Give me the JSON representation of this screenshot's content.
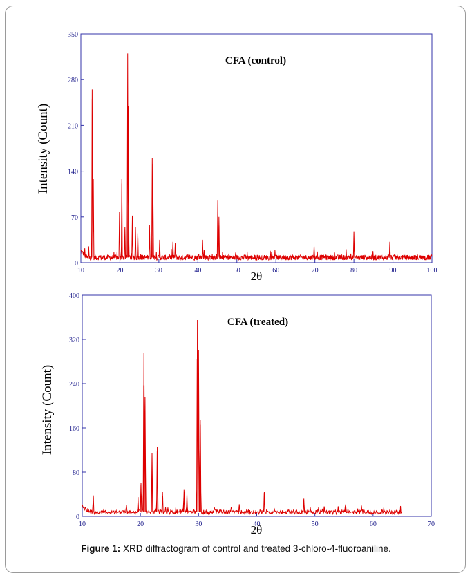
{
  "caption": {
    "label": "Figure 1:",
    "text": " XRD diffractogram of control and treated 3-chloro-4-fluoroaniline."
  },
  "colors": {
    "trace": "#dd0000",
    "axis": "#3333aa",
    "tick_text": "#1a1a8a"
  },
  "chart_data": [
    {
      "type": "line",
      "title": "CFA (control)",
      "xlabel": "2θ",
      "ylabel": "Intensity (Count)",
      "xlim": [
        10,
        100
      ],
      "ylim": [
        0,
        350
      ],
      "xticks": [
        10,
        20,
        30,
        40,
        50,
        60,
        70,
        80,
        90,
        100
      ],
      "yticks": [
        0,
        70,
        140,
        210,
        280,
        350
      ],
      "x_end": 100,
      "baseline": 8,
      "peaks": [
        {
          "x": 11.0,
          "y": 22
        },
        {
          "x": 12.0,
          "y": 25
        },
        {
          "x": 12.9,
          "y": 265
        },
        {
          "x": 13.2,
          "y": 128
        },
        {
          "x": 19.9,
          "y": 78
        },
        {
          "x": 20.5,
          "y": 128
        },
        {
          "x": 21.3,
          "y": 55
        },
        {
          "x": 22.0,
          "y": 320
        },
        {
          "x": 22.2,
          "y": 240
        },
        {
          "x": 23.2,
          "y": 72
        },
        {
          "x": 24.0,
          "y": 55
        },
        {
          "x": 24.6,
          "y": 45
        },
        {
          "x": 27.6,
          "y": 58
        },
        {
          "x": 28.3,
          "y": 160
        },
        {
          "x": 28.5,
          "y": 100
        },
        {
          "x": 30.2,
          "y": 35
        },
        {
          "x": 33.6,
          "y": 32
        },
        {
          "x": 34.2,
          "y": 30
        },
        {
          "x": 41.2,
          "y": 35
        },
        {
          "x": 41.6,
          "y": 20
        },
        {
          "x": 45.1,
          "y": 95
        },
        {
          "x": 45.4,
          "y": 70
        },
        {
          "x": 69.8,
          "y": 25
        },
        {
          "x": 80.0,
          "y": 48
        },
        {
          "x": 89.2,
          "y": 32
        }
      ]
    },
    {
      "type": "line",
      "title": "CFA (treated)",
      "xlabel": "2θ",
      "ylabel": "Intensity (Count)",
      "xlim": [
        10,
        70
      ],
      "ylim": [
        0,
        400
      ],
      "xticks": [
        10,
        20,
        30,
        40,
        50,
        60,
        70
      ],
      "yticks": [
        0,
        80,
        160,
        240,
        320,
        400
      ],
      "x_end": 65,
      "baseline": 8,
      "peaks": [
        {
          "x": 11.9,
          "y": 38
        },
        {
          "x": 19.6,
          "y": 35
        },
        {
          "x": 20.1,
          "y": 60
        },
        {
          "x": 20.6,
          "y": 295
        },
        {
          "x": 20.8,
          "y": 215
        },
        {
          "x": 22.0,
          "y": 115
        },
        {
          "x": 22.9,
          "y": 125
        },
        {
          "x": 23.8,
          "y": 45
        },
        {
          "x": 27.5,
          "y": 48
        },
        {
          "x": 28.0,
          "y": 40
        },
        {
          "x": 29.8,
          "y": 355
        },
        {
          "x": 30.0,
          "y": 300
        },
        {
          "x": 30.3,
          "y": 175
        },
        {
          "x": 37.0,
          "y": 22
        },
        {
          "x": 41.3,
          "y": 45
        },
        {
          "x": 48.1,
          "y": 32
        },
        {
          "x": 51.6,
          "y": 18
        },
        {
          "x": 55.3,
          "y": 22
        }
      ]
    }
  ]
}
